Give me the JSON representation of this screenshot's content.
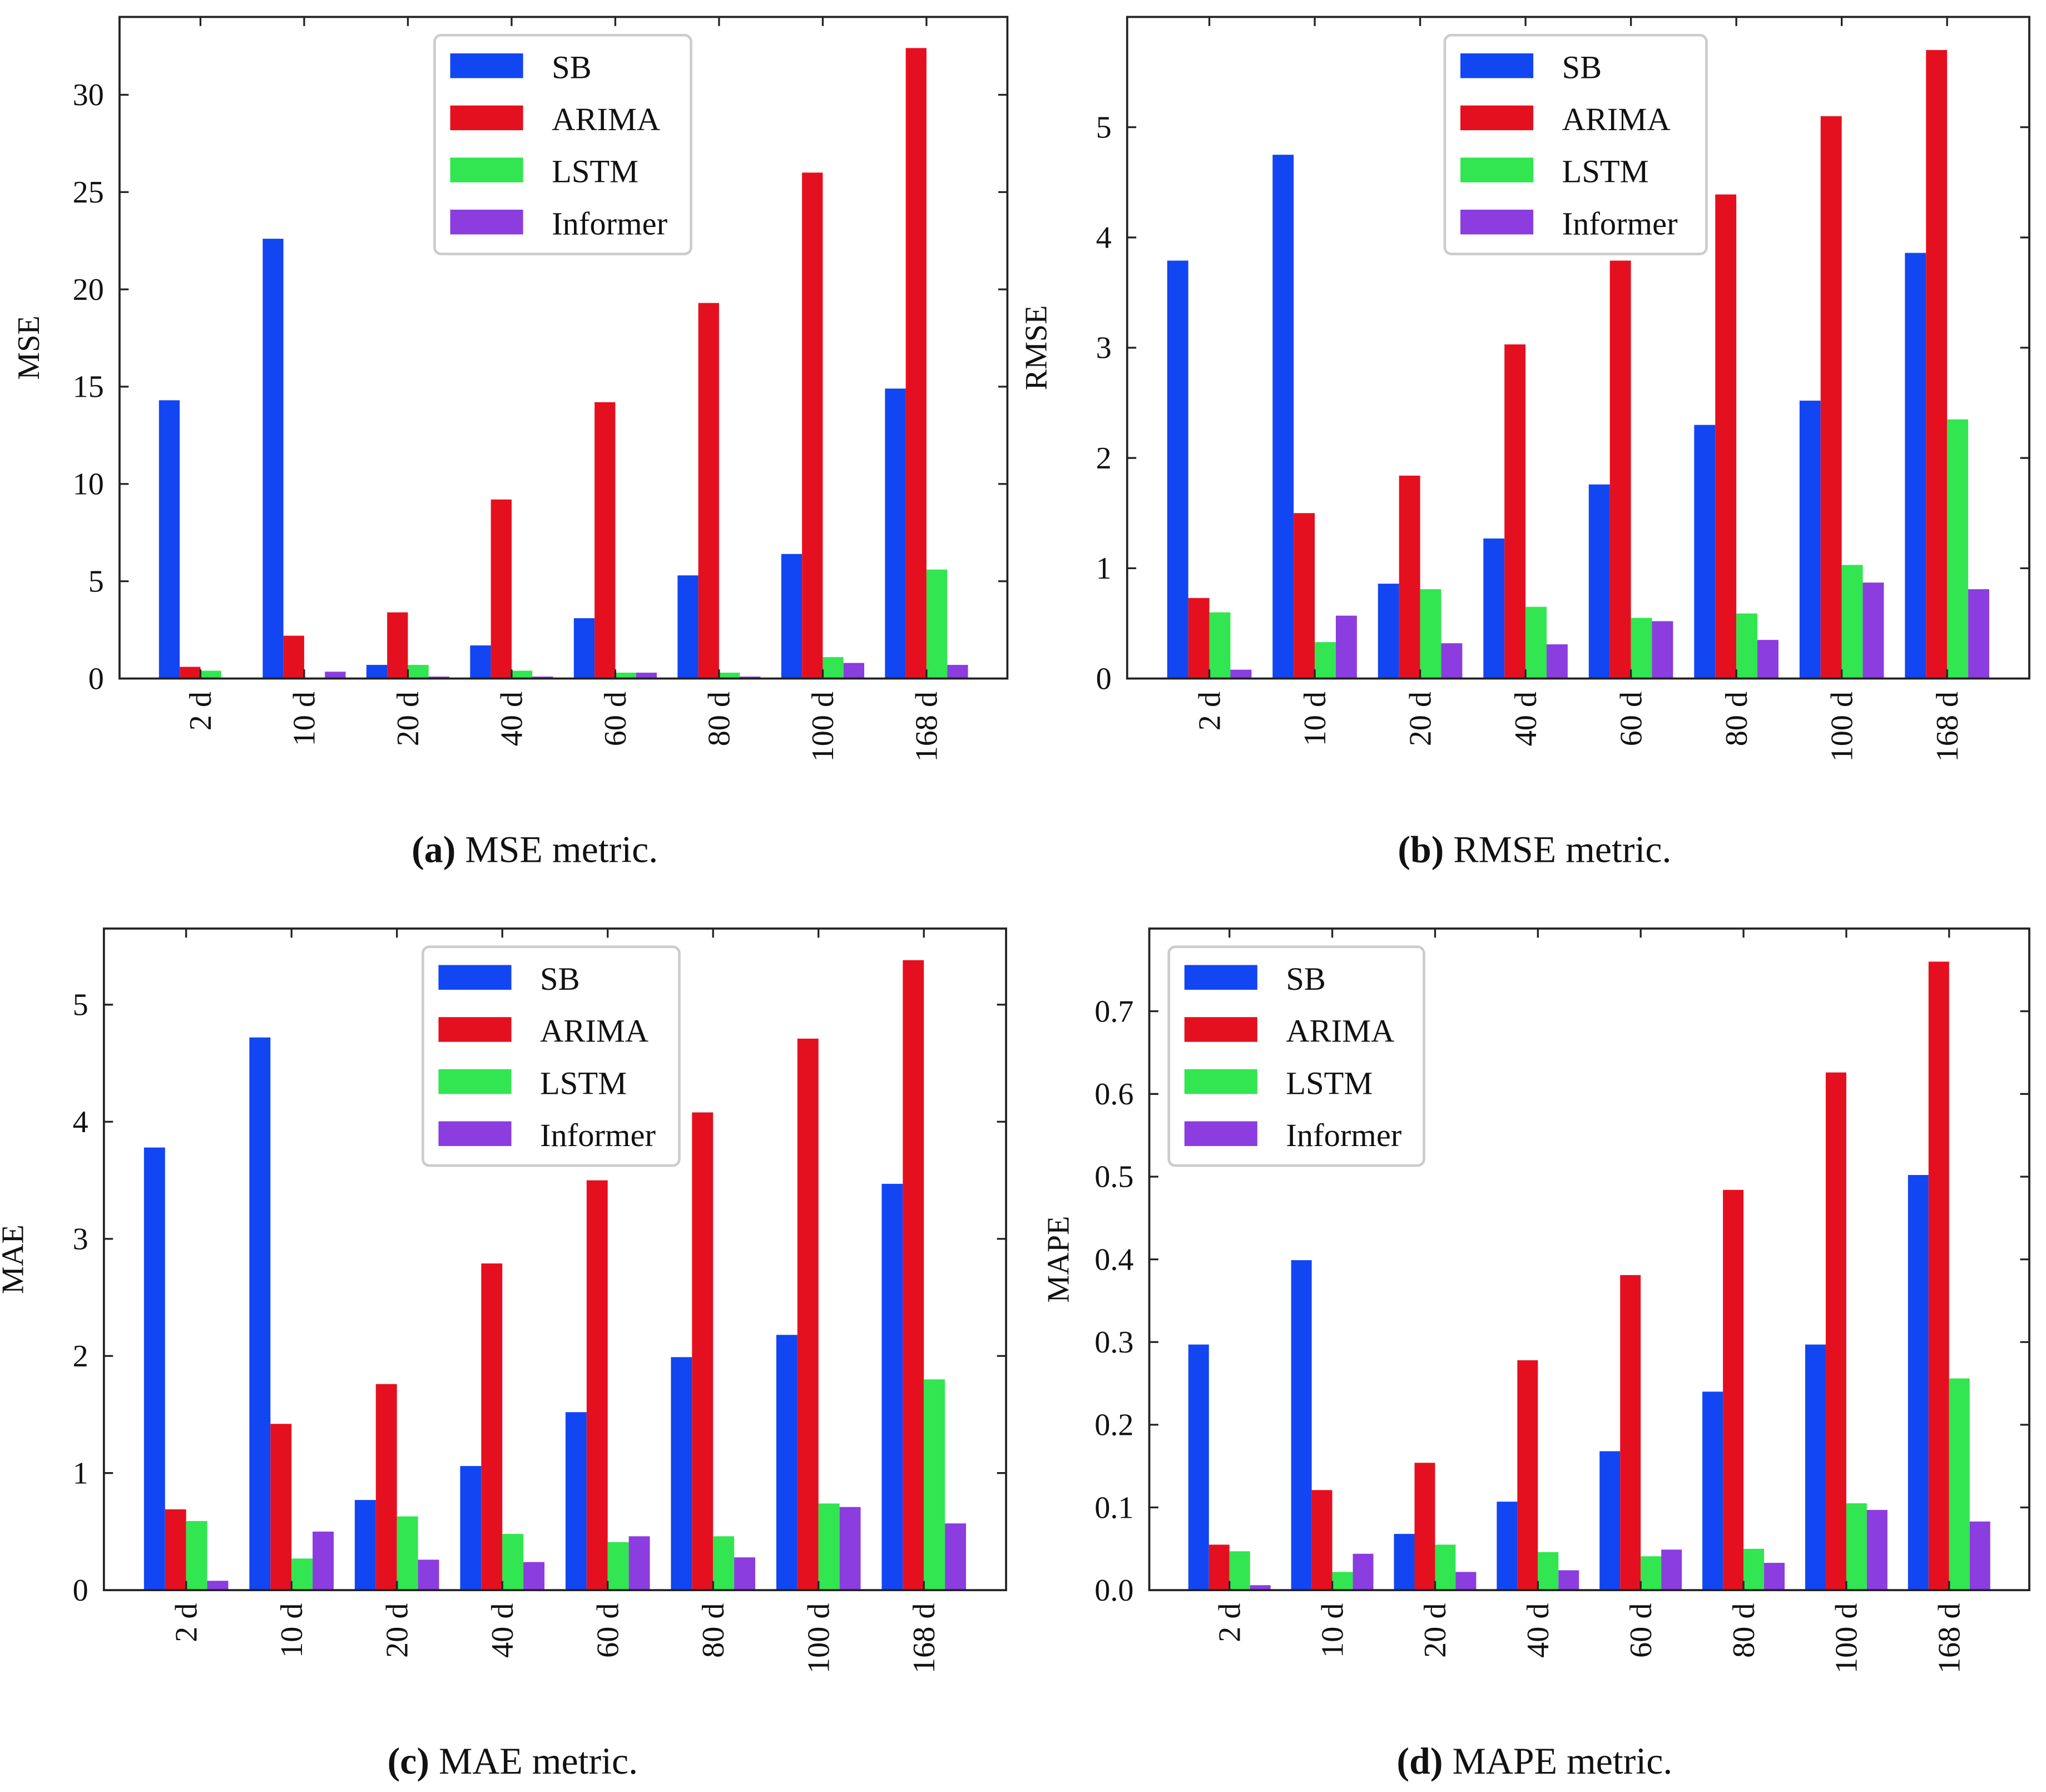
{
  "categories": [
    "2 d",
    "10 d",
    "20 d",
    "40 d",
    "60 d",
    "80 d",
    "100 d",
    "168 d"
  ],
  "series_colors": {
    "SB": "#1146f2",
    "ARIMA": "#e5101f",
    "LSTM": "#31e650",
    "Informer": "#8b3ddf"
  },
  "chart_data": [
    {
      "type": "bar",
      "caption_label": "(a)",
      "caption_text": " MSE metric.",
      "ylabel": "MSE",
      "ylim": [
        0,
        34
      ],
      "yticks": [
        0,
        5,
        10,
        15,
        20,
        25,
        30
      ],
      "ytick_labels": [
        "0",
        "5",
        "10",
        "15",
        "20",
        "25",
        "30"
      ],
      "legend_placement": "top-center",
      "series": [
        {
          "name": "SB",
          "values": [
            14.3,
            22.6,
            0.7,
            1.7,
            3.1,
            5.3,
            6.4,
            14.9
          ]
        },
        {
          "name": "ARIMA",
          "values": [
            0.6,
            2.2,
            3.4,
            9.2,
            14.2,
            19.3,
            26.0,
            32.4
          ]
        },
        {
          "name": "LSTM",
          "values": [
            0.4,
            0.05,
            0.7,
            0.4,
            0.3,
            0.3,
            1.1,
            5.6
          ]
        },
        {
          "name": "Informer",
          "values": [
            0.02,
            0.35,
            0.1,
            0.1,
            0.3,
            0.1,
            0.8,
            0.7
          ]
        }
      ]
    },
    {
      "type": "bar",
      "caption_label": "(b)",
      "caption_text": " RMSE metric.",
      "ylabel": "RMSE",
      "ylim": [
        0,
        6
      ],
      "yticks": [
        0,
        1,
        2,
        3,
        4,
        5
      ],
      "ytick_labels": [
        "0",
        "1",
        "2",
        "3",
        "4",
        "5"
      ],
      "legend_placement": "top-center",
      "series": [
        {
          "name": "SB",
          "values": [
            3.79,
            4.75,
            0.86,
            1.27,
            1.76,
            2.3,
            2.52,
            3.86
          ]
        },
        {
          "name": "ARIMA",
          "values": [
            0.73,
            1.5,
            1.84,
            3.03,
            3.79,
            4.39,
            5.1,
            5.7
          ]
        },
        {
          "name": "LSTM",
          "values": [
            0.6,
            0.33,
            0.81,
            0.65,
            0.55,
            0.59,
            1.03,
            2.35
          ]
        },
        {
          "name": "Informer",
          "values": [
            0.08,
            0.57,
            0.32,
            0.31,
            0.52,
            0.35,
            0.87,
            0.81
          ]
        }
      ]
    },
    {
      "type": "bar",
      "caption_label": "(c)",
      "caption_text": " MAE metric.",
      "ylabel": "MAE",
      "ylim": [
        0,
        5.65
      ],
      "yticks": [
        0,
        1,
        2,
        3,
        4,
        5
      ],
      "ytick_labels": [
        "0",
        "1",
        "2",
        "3",
        "4",
        "5"
      ],
      "legend_placement": "top-center",
      "series": [
        {
          "name": "SB",
          "values": [
            3.78,
            4.72,
            0.77,
            1.06,
            1.52,
            1.99,
            2.18,
            3.47
          ]
        },
        {
          "name": "ARIMA",
          "values": [
            0.69,
            1.42,
            1.76,
            2.79,
            3.5,
            4.08,
            4.71,
            5.38
          ]
        },
        {
          "name": "LSTM",
          "values": [
            0.59,
            0.27,
            0.63,
            0.48,
            0.41,
            0.46,
            0.74,
            1.8
          ]
        },
        {
          "name": "Informer",
          "values": [
            0.08,
            0.5,
            0.26,
            0.24,
            0.46,
            0.28,
            0.71,
            0.57
          ]
        }
      ]
    },
    {
      "type": "bar",
      "caption_label": "(d)",
      "caption_text": " MAPE metric.",
      "ylabel": "MAPE",
      "ylim": [
        0,
        0.8
      ],
      "yticks": [
        0,
        0.1,
        0.2,
        0.3,
        0.4,
        0.5,
        0.6,
        0.7
      ],
      "ytick_labels": [
        "0.0",
        "0.1",
        "0.2",
        "0.3",
        "0.4",
        "0.5",
        "0.6",
        "0.7"
      ],
      "legend_placement": "top-left",
      "series": [
        {
          "name": "SB",
          "values": [
            0.297,
            0.399,
            0.068,
            0.107,
            0.168,
            0.24,
            0.297,
            0.502
          ]
        },
        {
          "name": "ARIMA",
          "values": [
            0.055,
            0.121,
            0.154,
            0.278,
            0.381,
            0.484,
            0.626,
            0.76
          ]
        },
        {
          "name": "LSTM",
          "values": [
            0.047,
            0.022,
            0.055,
            0.046,
            0.041,
            0.05,
            0.105,
            0.256
          ]
        },
        {
          "name": "Informer",
          "values": [
            0.006,
            0.044,
            0.022,
            0.024,
            0.049,
            0.033,
            0.097,
            0.083
          ]
        }
      ]
    }
  ]
}
